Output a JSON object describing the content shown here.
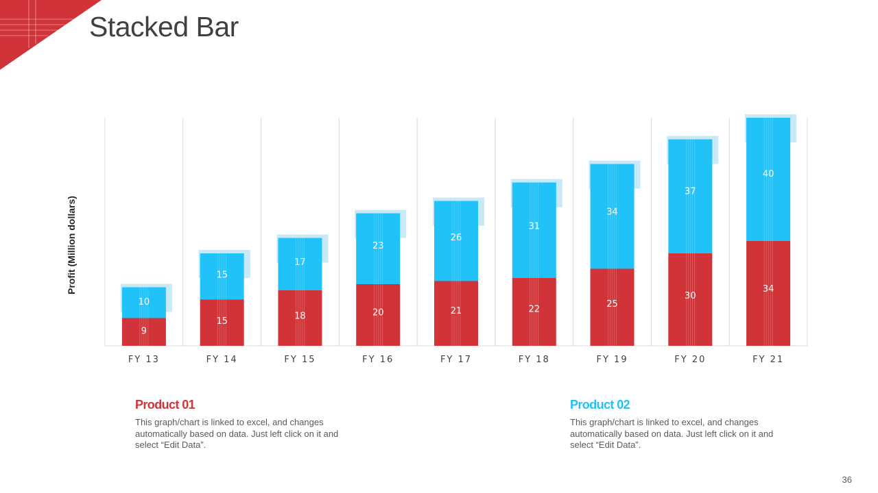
{
  "page": {
    "title": "Stacked Bar",
    "page_number": "36"
  },
  "colors": {
    "accent": "#D13438",
    "product01": "#D13438",
    "product02": "#21C2F8",
    "shadow": "#C8E9F6",
    "grid": "#D9D9D9"
  },
  "legend": [
    {
      "title": "Product 01",
      "description": "This graph/chart is linked to excel, and changes automatically based on data. Just left click on it and select “Edit Data”."
    },
    {
      "title": "Product 02",
      "description": "This graph/chart is linked to excel, and changes automatically based on data. Just left click on it and select “Edit Data”."
    }
  ],
  "chart_data": {
    "type": "bar",
    "stacked": true,
    "title": "Stacked Bar",
    "xlabel": "",
    "ylabel": "Profit  (Million dollars)",
    "ylim": [
      0,
      74
    ],
    "grid": true,
    "categories": [
      "FY 13",
      "FY 14",
      "FY 15",
      "FY 16",
      "FY 17",
      "FY 18",
      "FY 19",
      "FY 20",
      "FY 21"
    ],
    "series": [
      {
        "name": "Product 01",
        "values": [
          9,
          15,
          18,
          20,
          21,
          22,
          25,
          30,
          34
        ]
      },
      {
        "name": "Product 02",
        "values": [
          10,
          15,
          17,
          23,
          26,
          31,
          34,
          37,
          40
        ]
      }
    ]
  }
}
